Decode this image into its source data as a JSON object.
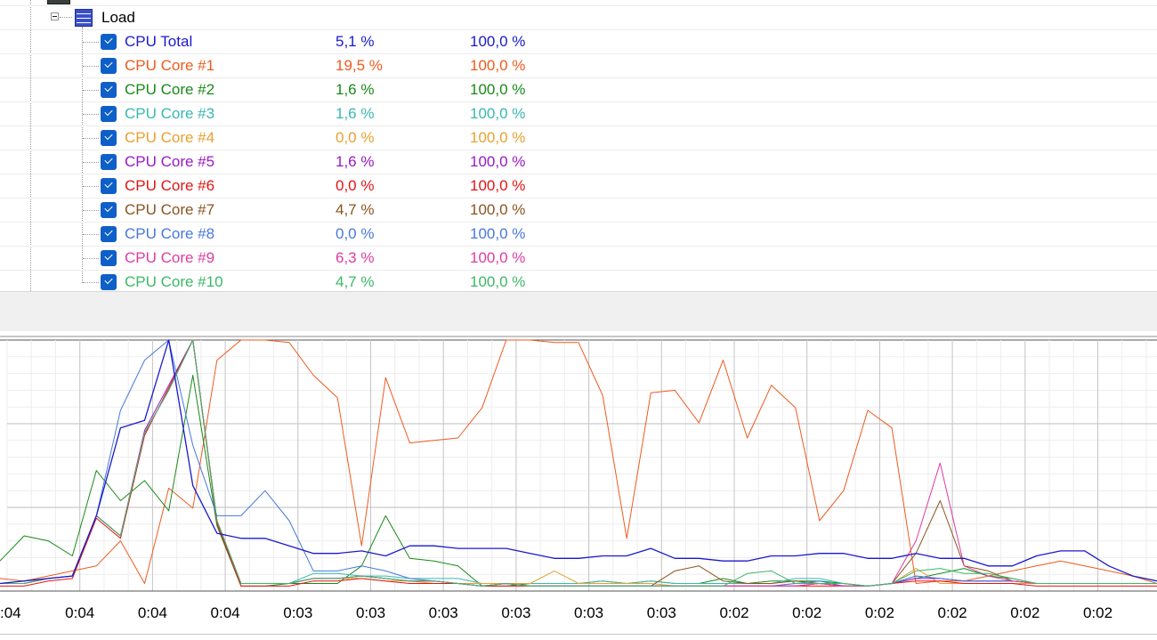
{
  "tree": {
    "group": {
      "label": "Load",
      "icon": "load-bars-icon"
    },
    "sensors": [
      {
        "name": "CPU Total",
        "value": "5,1 %",
        "max": "100,0 %",
        "color": "#1a1acd"
      },
      {
        "name": "CPU Core #1",
        "value": "19,5 %",
        "max": "100,0 %",
        "color": "#f05a1e"
      },
      {
        "name": "CPU Core #2",
        "value": "1,6 %",
        "max": "100,0 %",
        "color": "#188a18"
      },
      {
        "name": "CPU Core #3",
        "value": "1,6 %",
        "max": "100,0 %",
        "color": "#38b8b0"
      },
      {
        "name": "CPU Core #4",
        "value": "0,0 %",
        "max": "100,0 %",
        "color": "#e8a030"
      },
      {
        "name": "CPU Core #5",
        "value": "1,6 %",
        "max": "100,0 %",
        "color": "#9a18c8"
      },
      {
        "name": "CPU Core #6",
        "value": "0,0 %",
        "max": "100,0 %",
        "color": "#e41414"
      },
      {
        "name": "CPU Core #7",
        "value": "4,7 %",
        "max": "100,0 %",
        "color": "#8a5420"
      },
      {
        "name": "CPU Core #8",
        "value": "0,0 %",
        "max": "100,0 %",
        "color": "#4878dc"
      },
      {
        "name": "CPU Core #9",
        "value": "6,3 %",
        "max": "100,0 %",
        "color": "#e03ca0"
      },
      {
        "name": "CPU Core #10",
        "value": "4,7 %",
        "max": "100,0 %",
        "color": "#3cb868"
      }
    ]
  },
  "chart_data": {
    "type": "line",
    "x_tick_labels": [
      ":04",
      "0:04",
      "0:04",
      "0:04",
      "0:03",
      "0:03",
      "0:03",
      "0:03",
      "0:03",
      "0:03",
      "0:02",
      "0:02",
      "0:02",
      "0:02",
      "0:02",
      "0:02"
    ],
    "ylim": [
      0,
      100
    ],
    "grid": true,
    "series": [
      {
        "name": "CPU Total",
        "color": "#1a1acd",
        "values": [
          3,
          4,
          5,
          6,
          30,
          65,
          68,
          100,
          42,
          23,
          21,
          21,
          18,
          15,
          15,
          16,
          14,
          18,
          18,
          17,
          17,
          17,
          15,
          13,
          13,
          14,
          14,
          17,
          13,
          13,
          12,
          12,
          14,
          14,
          15,
          15,
          13,
          13,
          15,
          13,
          13,
          10,
          10,
          14,
          16,
          16,
          10,
          6,
          4
        ]
      },
      {
        "name": "CPU Core #1",
        "color": "#f05a1e",
        "values": [
          5,
          4,
          6,
          8,
          10,
          20,
          3,
          41,
          33,
          92,
          100,
          100,
          99,
          86,
          77,
          18,
          85,
          59,
          60,
          61,
          73,
          100,
          100,
          99,
          99,
          78,
          21,
          79,
          80,
          67,
          92,
          61,
          82,
          73,
          28,
          40,
          72,
          65,
          3,
          4,
          4,
          6,
          8,
          10,
          12,
          10,
          8,
          6,
          3
        ]
      },
      {
        "name": "CPU Core #2",
        "color": "#188a18",
        "values": [
          12,
          22,
          20,
          14,
          48,
          36,
          44,
          32,
          86,
          26,
          2,
          2,
          3,
          3,
          3,
          10,
          30,
          13,
          12,
          10,
          2,
          2,
          3,
          3,
          3,
          4,
          3,
          4,
          3,
          3,
          5,
          3,
          4,
          4,
          4,
          3,
          2,
          3,
          5,
          7,
          9,
          6,
          5,
          3,
          3,
          3,
          3,
          3,
          3
        ]
      },
      {
        "name": "CPU Core #3",
        "color": "#38b8b0",
        "values": [
          3,
          3,
          5,
          6,
          30,
          22,
          63,
          80,
          100,
          28,
          3,
          3,
          3,
          7,
          7,
          6,
          6,
          5,
          5,
          5,
          3,
          3,
          3,
          3,
          3,
          4,
          3,
          4,
          3,
          3,
          3,
          3,
          3,
          5,
          5,
          3,
          2,
          3,
          6,
          5,
          4,
          4,
          4,
          3,
          3,
          3,
          3,
          3,
          3
        ]
      },
      {
        "name": "CPU Core #4",
        "color": "#e8a030",
        "values": [
          3,
          3,
          5,
          6,
          30,
          22,
          63,
          80,
          100,
          28,
          3,
          3,
          3,
          5,
          5,
          5,
          4,
          4,
          3,
          3,
          3,
          3,
          3,
          8,
          3,
          3,
          3,
          3,
          2,
          2,
          2,
          2,
          2,
          3,
          3,
          3,
          2,
          3,
          9,
          3,
          3,
          3,
          3,
          3,
          3,
          3,
          3,
          3,
          3
        ]
      },
      {
        "name": "CPU Core #5",
        "color": "#9a18c8",
        "values": [
          3,
          3,
          5,
          6,
          30,
          22,
          64,
          82,
          100,
          28,
          3,
          3,
          3,
          5,
          5,
          6,
          5,
          4,
          4,
          3,
          2,
          3,
          2,
          2,
          2,
          2,
          2,
          2,
          2,
          2,
          2,
          2,
          2,
          2,
          3,
          2,
          2,
          3,
          5,
          5,
          4,
          4,
          4,
          3,
          3,
          3,
          3,
          3,
          3
        ]
      },
      {
        "name": "CPU Core #6",
        "color": "#e41414",
        "values": [
          2,
          2,
          4,
          5,
          29,
          21,
          62,
          81,
          100,
          27,
          2,
          2,
          2,
          4,
          4,
          5,
          4,
          3,
          3,
          3,
          2,
          2,
          2,
          2,
          2,
          2,
          2,
          2,
          2,
          2,
          2,
          2,
          2,
          2,
          2,
          2,
          2,
          3,
          4,
          4,
          3,
          3,
          3,
          2,
          2,
          2,
          2,
          2,
          2
        ]
      },
      {
        "name": "CPU Core #7",
        "color": "#8a5420",
        "values": [
          3,
          3,
          5,
          6,
          30,
          22,
          63,
          80,
          100,
          28,
          3,
          3,
          3,
          5,
          5,
          6,
          5,
          4,
          4,
          3,
          2,
          3,
          2,
          2,
          2,
          2,
          2,
          2,
          8,
          10,
          4,
          3,
          3,
          4,
          3,
          2,
          2,
          3,
          15,
          36,
          10,
          8,
          4,
          3,
          3,
          3,
          3,
          3,
          3
        ]
      },
      {
        "name": "CPU Core #8",
        "color": "#4878dc",
        "values": [
          3,
          3,
          5,
          6,
          30,
          72,
          92,
          100,
          58,
          30,
          30,
          40,
          28,
          8,
          8,
          10,
          8,
          5,
          4,
          3,
          2,
          3,
          2,
          2,
          2,
          2,
          2,
          2,
          2,
          2,
          2,
          2,
          2,
          3,
          4,
          2,
          2,
          3,
          6,
          5,
          4,
          4,
          4,
          3,
          3,
          3,
          3,
          3,
          3
        ]
      },
      {
        "name": "CPU Core #9",
        "color": "#e03ca0",
        "values": [
          3,
          3,
          5,
          6,
          30,
          22,
          63,
          80,
          100,
          28,
          3,
          3,
          3,
          5,
          5,
          6,
          5,
          4,
          4,
          3,
          2,
          3,
          2,
          2,
          2,
          2,
          2,
          2,
          2,
          2,
          2,
          2,
          2,
          2,
          3,
          2,
          2,
          3,
          20,
          51,
          10,
          6,
          4,
          3,
          3,
          3,
          3,
          3,
          3
        ]
      },
      {
        "name": "CPU Core #10",
        "color": "#3cb868",
        "values": [
          3,
          3,
          5,
          6,
          30,
          22,
          63,
          80,
          100,
          28,
          3,
          3,
          3,
          5,
          5,
          6,
          5,
          4,
          4,
          3,
          2,
          3,
          2,
          2,
          2,
          2,
          2,
          2,
          2,
          2,
          2,
          7,
          8,
          3,
          3,
          3,
          2,
          3,
          8,
          9,
          7,
          7,
          5,
          3,
          3,
          3,
          3,
          3,
          3
        ]
      }
    ]
  }
}
